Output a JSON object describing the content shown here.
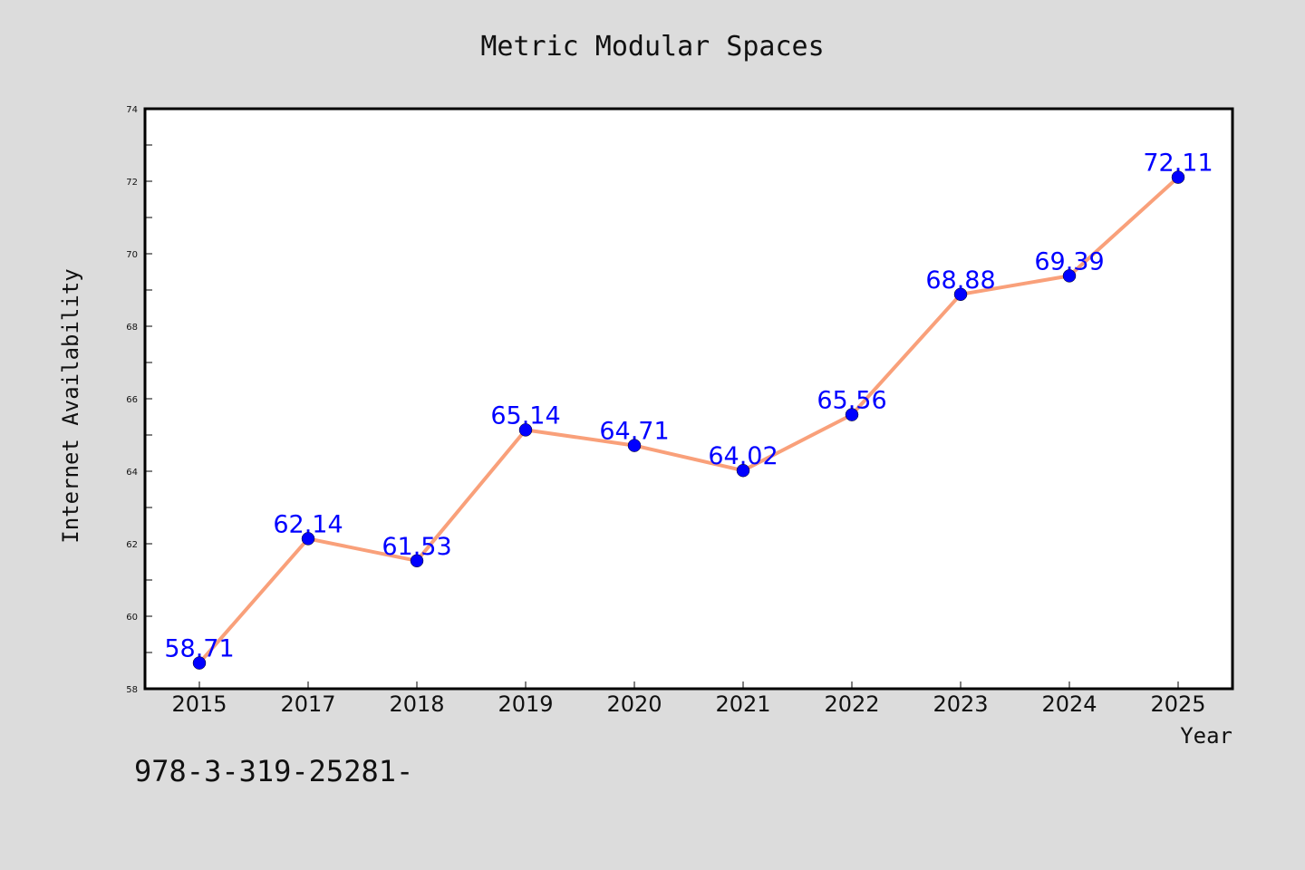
{
  "chart_data": {
    "type": "line",
    "title": "Metric Modular Spaces",
    "xlabel": "Year",
    "ylabel": "Internet Availability",
    "categories": [
      "2015",
      "2017",
      "2018",
      "2019",
      "2020",
      "2021",
      "2022",
      "2023",
      "2024",
      "2025"
    ],
    "series": [
      {
        "values": [
          58.71,
          62.14,
          61.53,
          65.14,
          64.71,
          64.02,
          65.56,
          68.88,
          69.39,
          72.11
        ],
        "data_labels": [
          "58.71",
          "62.14",
          "61.53",
          "65.14",
          "64.71",
          "64.02",
          "65.56",
          "68.88",
          "69.39",
          "72.11"
        ],
        "line_color": "#f9a07a",
        "marker_color": "#0000ff"
      }
    ],
    "ylim": [
      58,
      74
    ],
    "yticks": [
      "58",
      "60",
      "62",
      "64",
      "66",
      "68",
      "70",
      "72",
      "74"
    ],
    "grid": false,
    "label_color": "#0000ff"
  },
  "footer_text": "978-3-319-25281-",
  "colors": {
    "background": "#dcdcdc",
    "plot_background": "#ffffff",
    "line": "#f9a07a",
    "marker": "#0000ff",
    "data_label": "#0000ff"
  }
}
